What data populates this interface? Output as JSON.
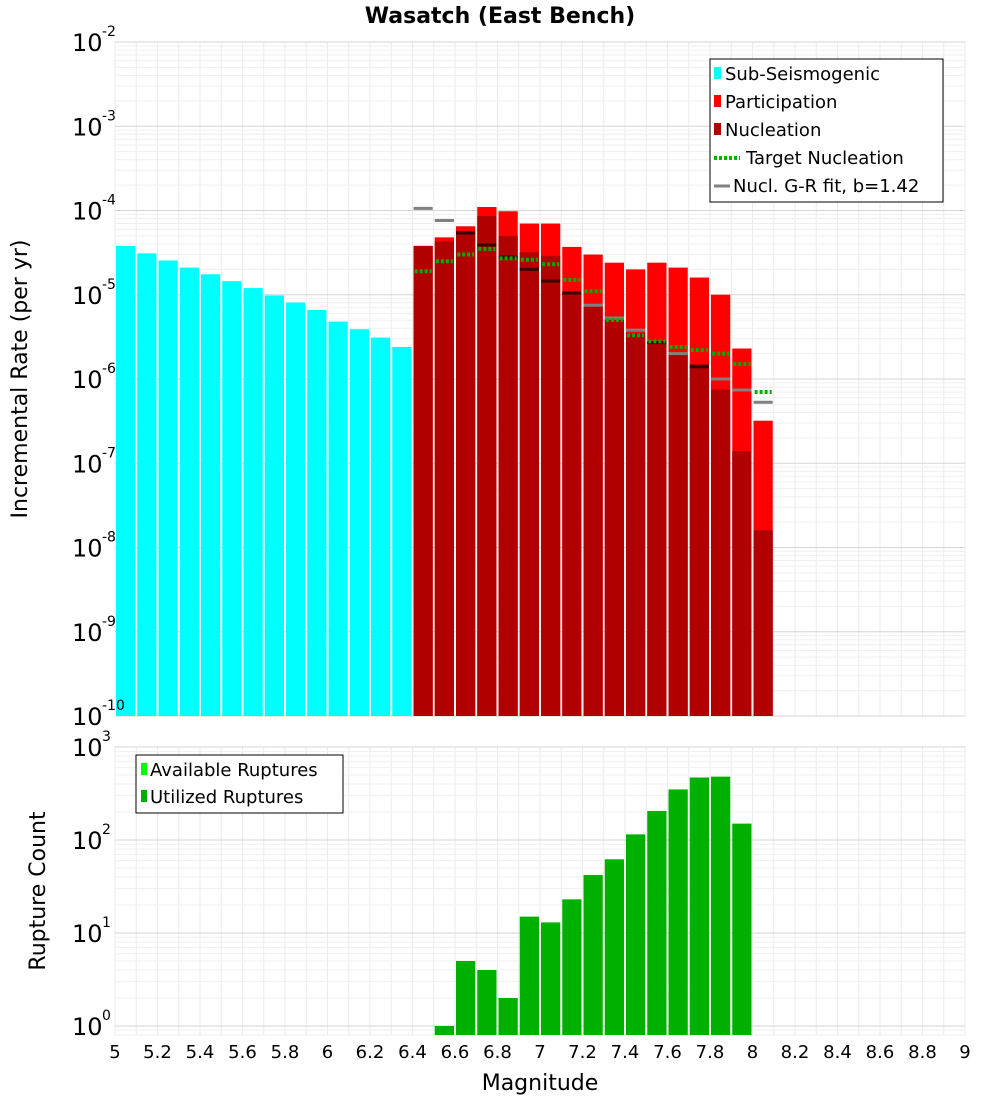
{
  "chart_data": [
    {
      "type": "bar",
      "title": "Wasatch (East Bench)",
      "ylabel": "Incremental Rate (per yr)",
      "yscale": "log",
      "ylim": [
        1e-10,
        0.01
      ],
      "xlim": [
        5,
        9
      ],
      "bar_width": 0.1,
      "legend_position": "top-right",
      "legend": [
        {
          "label": "Sub-Seismogenic",
          "color": "#00ffff",
          "kind": "box"
        },
        {
          "label": "Participation",
          "color": "#ff0000",
          "kind": "box"
        },
        {
          "label": "Nucleation",
          "color": "#b00000",
          "kind": "box"
        },
        {
          "label": "Target Nucleation",
          "color": "#00b000",
          "kind": "dotted"
        },
        {
          "label": "Nucl. G-R fit, b=1.42",
          "color": "#808080",
          "kind": "line"
        }
      ],
      "series": [
        {
          "name": "Sub-Seismogenic",
          "color": "#00ffff",
          "x": [
            5.05,
            5.15,
            5.25,
            5.35,
            5.45,
            5.55,
            5.65,
            5.75,
            5.85,
            5.95,
            6.05,
            6.15,
            6.25,
            6.35
          ],
          "values": [
            3.8e-05,
            3.1e-05,
            2.55e-05,
            2.1e-05,
            1.75e-05,
            1.45e-05,
            1.2e-05,
            9.8e-06,
            8.1e-06,
            6.6e-06,
            4.8e-06,
            3.9e-06,
            3.1e-06,
            2.4e-06
          ]
        },
        {
          "name": "Participation",
          "color": "#ff0000",
          "x": [
            6.45,
            6.55,
            6.65,
            6.75,
            6.85,
            6.95,
            7.05,
            7.15,
            7.25,
            7.35,
            7.45,
            7.55,
            7.65,
            7.75,
            7.85,
            7.95,
            8.05
          ],
          "values": [
            3.8e-05,
            4.8e-05,
            6.5e-05,
            0.00011,
            9.8e-05,
            7e-05,
            7e-05,
            3.7e-05,
            3e-05,
            2.4e-05,
            2e-05,
            2.4e-05,
            2.1e-05,
            1.6e-05,
            1e-05,
            2.3e-06,
            3.2e-07
          ]
        },
        {
          "name": "Nucleation",
          "color": "#b00000",
          "x": [
            6.45,
            6.55,
            6.65,
            6.75,
            6.85,
            6.95,
            7.05,
            7.15,
            7.25,
            7.35,
            7.45,
            7.55,
            7.65,
            7.75,
            7.85,
            7.95,
            8.05
          ],
          "values": [
            3.8e-05,
            4.3e-05,
            5.7e-05,
            8.6e-05,
            5e-05,
            3.2e-05,
            2.9e-05,
            1.1e-05,
            7.3e-06,
            5e-06,
            3.5e-06,
            2.8e-06,
            2e-06,
            1.5e-06,
            7.5e-07,
            1.4e-07,
            1.6e-08
          ]
        },
        {
          "name": "Target Nucleation",
          "color": "#00b000",
          "x": [
            6.45,
            6.55,
            6.65,
            6.75,
            6.85,
            6.95,
            7.05,
            7.15,
            7.25,
            7.35,
            7.45,
            7.55,
            7.65,
            7.75,
            7.85,
            7.95,
            8.05
          ],
          "values": [
            1.9e-05,
            2.5e-05,
            3e-05,
            3.5e-05,
            2.7e-05,
            2.6e-05,
            2.3e-05,
            1.5e-05,
            1.1e-05,
            5e-06,
            3.3e-06,
            2.8e-06,
            2.4e-06,
            2.2e-06,
            2e-06,
            1.5e-06,
            7e-07
          ]
        },
        {
          "name": "Nucl. G-R fit, b=1.42",
          "color": "#808080",
          "x": [
            6.45,
            6.55,
            6.65,
            6.75,
            6.85,
            6.95,
            7.05,
            7.15,
            7.25,
            7.35,
            7.45,
            7.55,
            7.65,
            7.75,
            7.85,
            7.95,
            8.05
          ],
          "values": [
            0.000106,
            7.6e-05,
            5.4e-05,
            3.9e-05,
            2.8e-05,
            2e-05,
            1.45e-05,
            1.05e-05,
            7.5e-06,
            5.3e-06,
            3.8e-06,
            2.7e-06,
            2e-06,
            1.4e-06,
            1e-06,
            7.4e-07,
            5.3e-07
          ]
        }
      ]
    },
    {
      "type": "bar",
      "xlabel": "Magnitude",
      "ylabel": "Rupture Count",
      "yscale": "log",
      "ylim": [
        0.8,
        1000
      ],
      "xlim": [
        5,
        9
      ],
      "xticks": [
        "5",
        "5.2",
        "5.4",
        "5.6",
        "5.8",
        "6",
        "6.2",
        "6.4",
        "6.6",
        "6.8",
        "7",
        "7.2",
        "7.4",
        "7.6",
        "7.8",
        "8",
        "8.2",
        "8.4",
        "8.6",
        "8.8",
        "9"
      ],
      "bar_width": 0.1,
      "legend_position": "top-left",
      "legend": [
        {
          "label": "Available Ruptures",
          "color": "#00ff00",
          "kind": "box"
        },
        {
          "label": "Utilized Ruptures",
          "color": "#00b000",
          "kind": "box"
        }
      ],
      "series": [
        {
          "name": "Utilized Ruptures",
          "color": "#00b000",
          "x": [
            6.55,
            6.65,
            6.75,
            6.85,
            6.95,
            7.05,
            7.15,
            7.25,
            7.35,
            7.45,
            7.55,
            7.65,
            7.75,
            7.85,
            7.95
          ],
          "values": [
            1,
            5,
            4,
            2,
            15,
            13,
            23,
            42,
            62,
            115,
            205,
            350,
            470,
            480,
            150
          ]
        }
      ]
    }
  ]
}
